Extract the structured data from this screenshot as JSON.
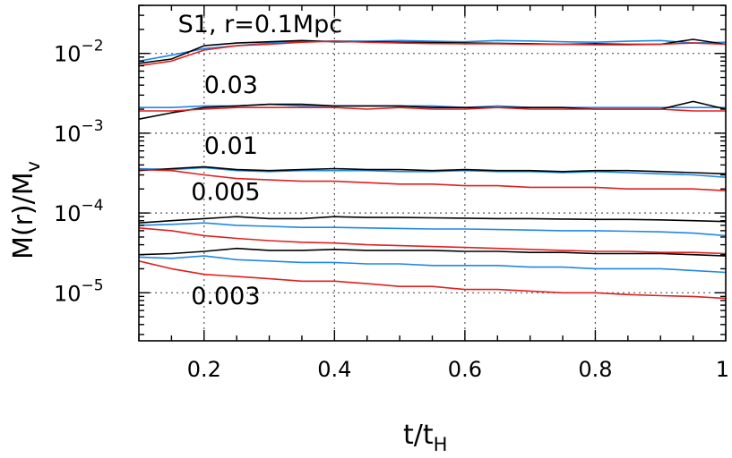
{
  "chart_data": {
    "type": "line",
    "xlabel": "t/t",
    "xlabel_sub": "H",
    "ylabel": "M(r)/M",
    "ylabel_sub": "v",
    "xlim": [
      0.1,
      1.0
    ],
    "ylim": [
      2.5e-06,
      0.04
    ],
    "yscale": "log",
    "grid": true,
    "x_ticks": [
      0.2,
      0.4,
      0.6,
      0.8,
      1.0
    ],
    "x_tick_labels": [
      "0.2",
      "0.4",
      "0.6",
      "0.8",
      "1"
    ],
    "y_ticks": [
      1e-05,
      0.0001,
      0.001,
      0.01
    ],
    "y_tick_labels": [
      {
        "base": "10",
        "exp": "−5"
      },
      {
        "base": "10",
        "exp": "−4"
      },
      {
        "base": "10",
        "exp": "−3"
      },
      {
        "base": "10",
        "exp": "−2"
      }
    ],
    "annotations": [
      {
        "text": "S1, r=0.1Mpc",
        "x": 0.16,
        "y": 0.0185
      },
      {
        "text": "0.03",
        "x": 0.2,
        "y": 0.0032
      },
      {
        "text": "0.01",
        "x": 0.2,
        "y": 0.00055
      },
      {
        "text": "0.005",
        "x": 0.18,
        "y": 0.000145
      },
      {
        "text": "0.003",
        "x": 0.18,
        "y": 7.2e-06
      }
    ],
    "line_colors": {
      "black": "#000000",
      "blue": "#1e88e5",
      "red": "#e02020"
    },
    "groups": [
      {
        "label": "S1, r=0.1Mpc",
        "series": [
          {
            "color": "black",
            "x": [
              0.1,
              0.15,
              0.2,
              0.25,
              0.3,
              0.35,
              0.4,
              0.45,
              0.5,
              0.55,
              0.6,
              0.65,
              0.7,
              0.75,
              0.8,
              0.85,
              0.9,
              0.95,
              1.0
            ],
            "y": [
              0.0075,
              0.0085,
              0.0125,
              0.0135,
              0.014,
              0.0145,
              0.014,
              0.014,
              0.0138,
              0.0137,
              0.0135,
              0.0134,
              0.0132,
              0.013,
              0.0132,
              0.013,
              0.013,
              0.015,
              0.013
            ]
          },
          {
            "color": "blue",
            "x": [
              0.1,
              0.15,
              0.2,
              0.25,
              0.3,
              0.35,
              0.4,
              0.45,
              0.5,
              0.55,
              0.6,
              0.65,
              0.7,
              0.75,
              0.8,
              0.85,
              0.9,
              0.95,
              1.0
            ],
            "y": [
              0.008,
              0.0095,
              0.0115,
              0.0125,
              0.0135,
              0.014,
              0.0143,
              0.0142,
              0.0145,
              0.0142,
              0.014,
              0.0145,
              0.0143,
              0.014,
              0.0138,
              0.0142,
              0.0145,
              0.0135,
              0.0138
            ]
          },
          {
            "color": "red",
            "x": [
              0.1,
              0.15,
              0.2,
              0.25,
              0.3,
              0.35,
              0.4,
              0.45,
              0.5,
              0.55,
              0.6,
              0.65,
              0.7,
              0.75,
              0.8,
              0.85,
              0.9,
              0.95,
              1.0
            ],
            "y": [
              0.007,
              0.008,
              0.011,
              0.0125,
              0.013,
              0.0138,
              0.0142,
              0.0138,
              0.0135,
              0.0133,
              0.0132,
              0.0132,
              0.013,
              0.013,
              0.0128,
              0.0128,
              0.013,
              0.0135,
              0.013
            ]
          }
        ]
      },
      {
        "label": "0.03",
        "series": [
          {
            "color": "black",
            "x": [
              0.1,
              0.15,
              0.2,
              0.25,
              0.3,
              0.35,
              0.4,
              0.45,
              0.5,
              0.55,
              0.6,
              0.65,
              0.7,
              0.75,
              0.8,
              0.85,
              0.9,
              0.95,
              1.0
            ],
            "y": [
              0.0015,
              0.0018,
              0.0021,
              0.0022,
              0.0023,
              0.0023,
              0.0022,
              0.0022,
              0.0022,
              0.0021,
              0.0021,
              0.0021,
              0.0021,
              0.0021,
              0.002,
              0.002,
              0.002,
              0.0025,
              0.002
            ]
          },
          {
            "color": "blue",
            "x": [
              0.1,
              0.15,
              0.2,
              0.25,
              0.3,
              0.35,
              0.4,
              0.45,
              0.5,
              0.55,
              0.6,
              0.65,
              0.7,
              0.75,
              0.8,
              0.85,
              0.9,
              0.95,
              1.0
            ],
            "y": [
              0.0021,
              0.0021,
              0.0022,
              0.0022,
              0.0023,
              0.0022,
              0.0022,
              0.0022,
              0.0022,
              0.0022,
              0.0021,
              0.0022,
              0.0021,
              0.0021,
              0.0021,
              0.0021,
              0.0021,
              0.0021,
              0.0021
            ]
          },
          {
            "color": "red",
            "x": [
              0.1,
              0.15,
              0.2,
              0.25,
              0.3,
              0.35,
              0.4,
              0.45,
              0.5,
              0.55,
              0.6,
              0.65,
              0.7,
              0.75,
              0.8,
              0.85,
              0.9,
              0.95,
              1.0
            ],
            "y": [
              0.0019,
              0.0019,
              0.002,
              0.0021,
              0.0021,
              0.0021,
              0.0021,
              0.002,
              0.0021,
              0.002,
              0.002,
              0.0021,
              0.002,
              0.002,
              0.002,
              0.002,
              0.002,
              0.0019,
              0.0019
            ]
          }
        ]
      },
      {
        "label": "0.01",
        "series": [
          {
            "color": "black",
            "x": [
              0.1,
              0.15,
              0.2,
              0.25,
              0.3,
              0.35,
              0.4,
              0.45,
              0.5,
              0.55,
              0.6,
              0.65,
              0.7,
              0.75,
              0.8,
              0.85,
              0.9,
              0.95,
              1.0
            ],
            "y": [
              0.00034,
              0.00036,
              0.00038,
              0.00035,
              0.00034,
              0.00035,
              0.00036,
              0.00035,
              0.00035,
              0.00034,
              0.00035,
              0.00034,
              0.00034,
              0.00033,
              0.00034,
              0.00034,
              0.00033,
              0.00032,
              0.00031
            ]
          },
          {
            "color": "blue",
            "x": [
              0.1,
              0.15,
              0.2,
              0.25,
              0.3,
              0.35,
              0.4,
              0.45,
              0.5,
              0.55,
              0.6,
              0.65,
              0.7,
              0.75,
              0.8,
              0.85,
              0.9,
              0.95,
              1.0
            ],
            "y": [
              0.00036,
              0.00035,
              0.00037,
              0.00034,
              0.00033,
              0.00034,
              0.00034,
              0.00034,
              0.00033,
              0.00033,
              0.00034,
              0.00033,
              0.00033,
              0.00032,
              0.00033,
              0.00032,
              0.00031,
              0.0003,
              0.00028
            ]
          },
          {
            "color": "red",
            "x": [
              0.1,
              0.15,
              0.2,
              0.25,
              0.3,
              0.35,
              0.4,
              0.45,
              0.5,
              0.55,
              0.6,
              0.65,
              0.7,
              0.75,
              0.8,
              0.85,
              0.9,
              0.95,
              1.0
            ],
            "y": [
              0.00035,
              0.00034,
              0.0003,
              0.00027,
              0.00026,
              0.00025,
              0.00025,
              0.00024,
              0.00023,
              0.00023,
              0.00022,
              0.00022,
              0.00021,
              0.00021,
              0.00021,
              0.0002,
              0.0002,
              0.0002,
              0.00019
            ]
          }
        ]
      },
      {
        "label": "0.005",
        "series": [
          {
            "color": "black",
            "x": [
              0.1,
              0.15,
              0.2,
              0.25,
              0.3,
              0.35,
              0.4,
              0.45,
              0.5,
              0.55,
              0.6,
              0.65,
              0.7,
              0.75,
              0.8,
              0.85,
              0.9,
              0.95,
              1.0
            ],
            "y": [
              7.5e-05,
              8e-05,
              8.5e-05,
              9e-05,
              8.5e-05,
              8.5e-05,
              9e-05,
              8.8e-05,
              8.8e-05,
              8.7e-05,
              8.6e-05,
              8.5e-05,
              8.5e-05,
              8.4e-05,
              8.3e-05,
              8.3e-05,
              8.2e-05,
              8e-05,
              7.8e-05
            ]
          },
          {
            "color": "blue",
            "x": [
              0.1,
              0.15,
              0.2,
              0.25,
              0.3,
              0.35,
              0.4,
              0.45,
              0.5,
              0.55,
              0.6,
              0.65,
              0.7,
              0.75,
              0.8,
              0.85,
              0.9,
              0.95,
              1.0
            ],
            "y": [
              7e-05,
              7.2e-05,
              7.5e-05,
              7e-05,
              6.8e-05,
              6.6e-05,
              6.6e-05,
              6.5e-05,
              6.4e-05,
              6.3e-05,
              6.3e-05,
              6.2e-05,
              6.1e-05,
              6e-05,
              6e-05,
              5.9e-05,
              5.8e-05,
              5.6e-05,
              5.2e-05
            ]
          },
          {
            "color": "red",
            "x": [
              0.1,
              0.15,
              0.2,
              0.25,
              0.3,
              0.35,
              0.4,
              0.45,
              0.5,
              0.55,
              0.6,
              0.65,
              0.7,
              0.75,
              0.8,
              0.85,
              0.9,
              0.95,
              1.0
            ],
            "y": [
              6.5e-05,
              6e-05,
              5.2e-05,
              4.8e-05,
              4.5e-05,
              4.3e-05,
              4.2e-05,
              4e-05,
              3.9e-05,
              3.8e-05,
              3.7e-05,
              3.6e-05,
              3.5e-05,
              3.4e-05,
              3.3e-05,
              3.3e-05,
              3.2e-05,
              3.2e-05,
              3.1e-05
            ]
          }
        ]
      },
      {
        "label": "0.003",
        "series": [
          {
            "color": "black",
            "x": [
              0.1,
              0.15,
              0.2,
              0.25,
              0.3,
              0.35,
              0.4,
              0.45,
              0.5,
              0.55,
              0.6,
              0.65,
              0.7,
              0.75,
              0.8,
              0.85,
              0.9,
              0.95,
              1.0
            ],
            "y": [
              3e-05,
              3.1e-05,
              3.3e-05,
              3.6e-05,
              3.4e-05,
              3.4e-05,
              3.5e-05,
              3.4e-05,
              3.4e-05,
              3.4e-05,
              3.3e-05,
              3.3e-05,
              3.2e-05,
              3.2e-05,
              3.1e-05,
              3.1e-05,
              3.1e-05,
              3e-05,
              2.9e-05
            ]
          },
          {
            "color": "blue",
            "x": [
              0.1,
              0.15,
              0.2,
              0.25,
              0.3,
              0.35,
              0.4,
              0.45,
              0.5,
              0.55,
              0.6,
              0.65,
              0.7,
              0.75,
              0.8,
              0.85,
              0.9,
              0.95,
              1.0
            ],
            "y": [
              2.8e-05,
              2.7e-05,
              2.9e-05,
              2.6e-05,
              2.5e-05,
              2.4e-05,
              2.4e-05,
              2.3e-05,
              2.3e-05,
              2.2e-05,
              2.2e-05,
              2.2e-05,
              2.1e-05,
              2.1e-05,
              2e-05,
              2e-05,
              2e-05,
              1.9e-05,
              1.8e-05
            ]
          },
          {
            "color": "red",
            "x": [
              0.1,
              0.15,
              0.2,
              0.25,
              0.3,
              0.35,
              0.4,
              0.45,
              0.5,
              0.55,
              0.6,
              0.65,
              0.7,
              0.75,
              0.8,
              0.85,
              0.9,
              0.95,
              1.0
            ],
            "y": [
              2.5e-05,
              2e-05,
              1.7e-05,
              1.6e-05,
              1.5e-05,
              1.4e-05,
              1.4e-05,
              1.3e-05,
              1.2e-05,
              1.2e-05,
              1.1e-05,
              1.1e-05,
              1.05e-05,
              1e-05,
              1e-05,
              9.5e-06,
              9.2e-06,
              9e-06,
              8.5e-06
            ]
          }
        ]
      }
    ]
  }
}
